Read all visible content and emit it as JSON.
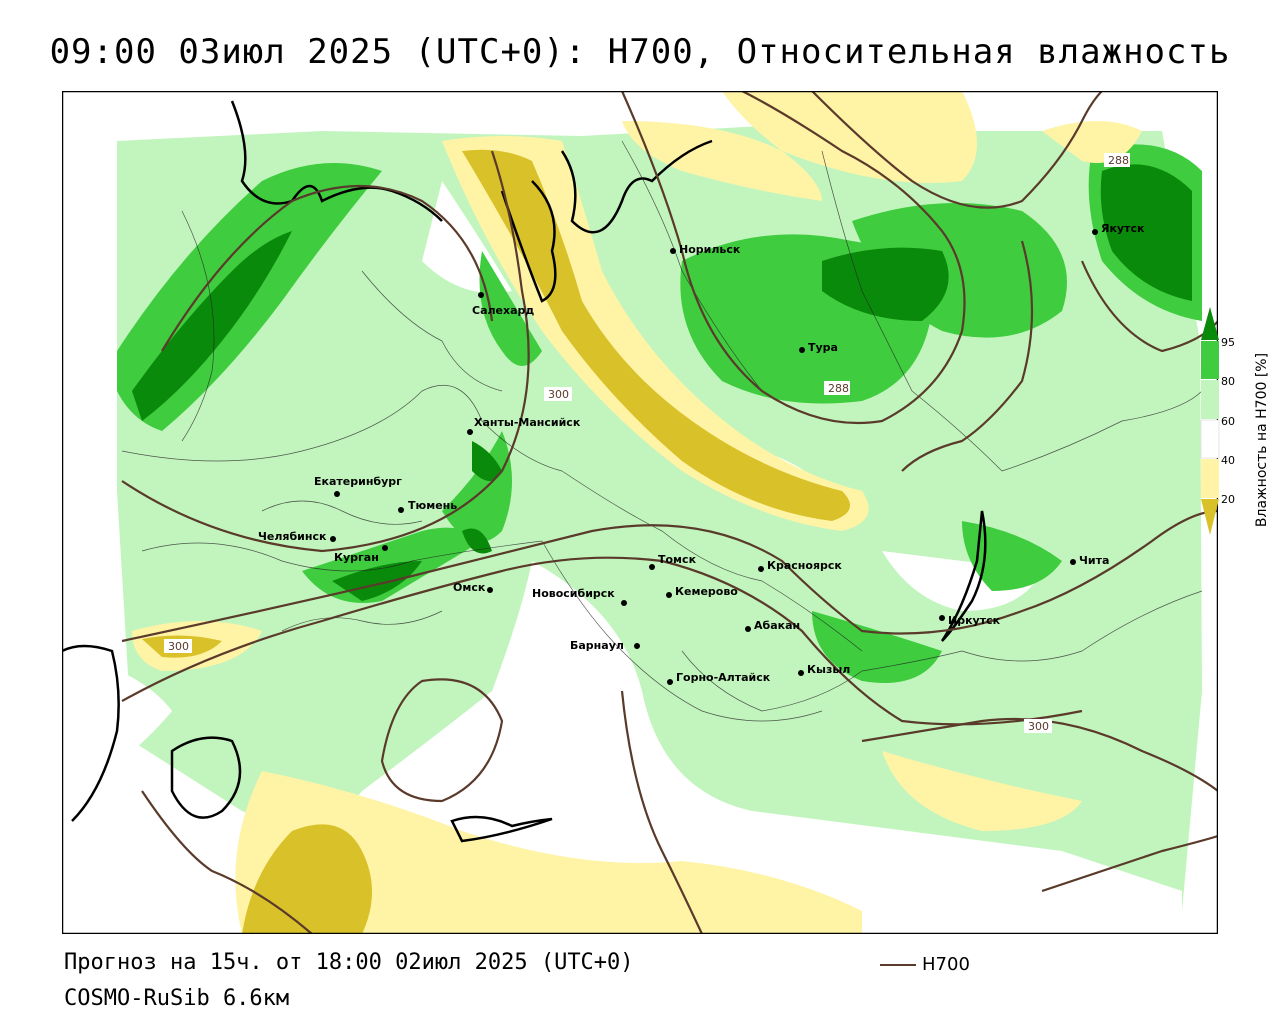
{
  "title": "09:00 03июл 2025 (UTC+0): H700, Относительная влажность",
  "footer": {
    "forecast": "Прогноз на 15ч. от 18:00 02июл 2025 (UTC+0)",
    "model": "COSMO-RuSib 6.6км"
  },
  "contour_key": {
    "label": "H700",
    "color": "#5a3a2a"
  },
  "legend": {
    "title": "Влажность на H700 [%]",
    "ticks": [
      "95",
      "80",
      "60",
      "40",
      "20"
    ],
    "colors": {
      "above95": "#0a8a0a",
      "r80_95": "#3fcc3f",
      "r60_80": "#c2f5bd",
      "r40_60": "#ffffff",
      "r20_40": "#fff3a6",
      "below20": "#d9c12a"
    }
  },
  "cities": [
    {
      "name": "Норильск"
    },
    {
      "name": "Якутск"
    },
    {
      "name": "Салехард"
    },
    {
      "name": "Тура"
    },
    {
      "name": "Ханты-Мансийск"
    },
    {
      "name": "Екатеринбург"
    },
    {
      "name": "Тюмень"
    },
    {
      "name": "Челябинск"
    },
    {
      "name": "Курган"
    },
    {
      "name": "Омск"
    },
    {
      "name": "Томск"
    },
    {
      "name": "Новосибирск"
    },
    {
      "name": "Кемерово"
    },
    {
      "name": "Красноярск"
    },
    {
      "name": "Барнаул"
    },
    {
      "name": "Абакан"
    },
    {
      "name": "Горно-Алтайск"
    },
    {
      "name": "Кызыл"
    },
    {
      "name": "Иркутск"
    },
    {
      "name": "Чита"
    }
  ],
  "contour_labels": [
    "288",
    "288",
    "300",
    "300",
    "300"
  ]
}
